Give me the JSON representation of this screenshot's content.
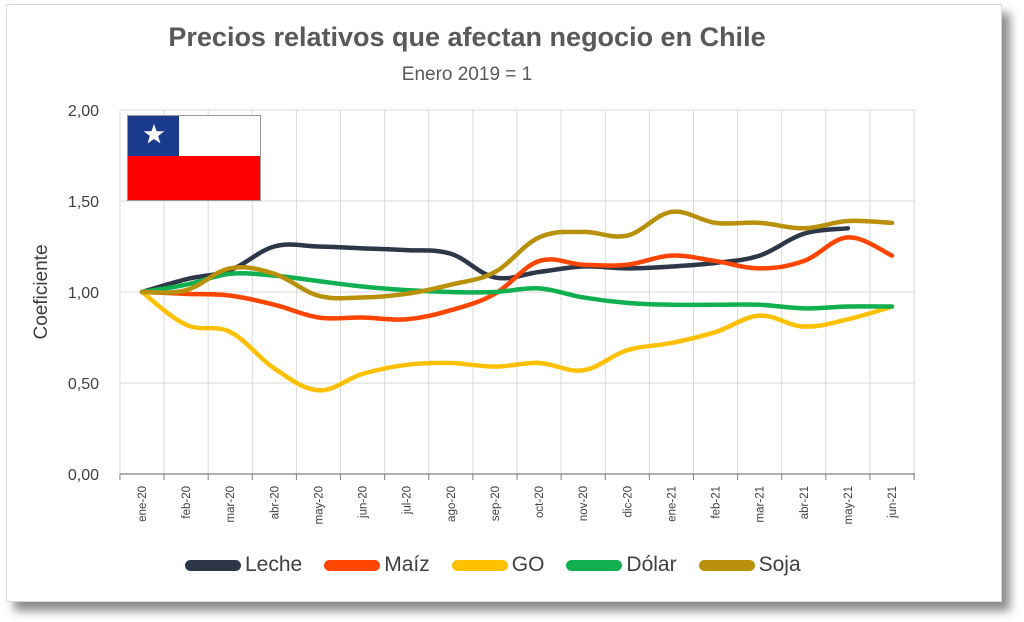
{
  "title": "Precios relativos que afectan negocio en Chile",
  "subtitle": "Enero 2019 = 1",
  "colors": {
    "Leche": "#2d3748",
    "Maíz": "#ff4500",
    "GO": "#ffc000",
    "Dólar": "#10b050",
    "Soja": "#b8900a",
    "grid": "#d9d9d9",
    "flag_blue": "#1a3a8c",
    "flag_red": "#ff0000"
  },
  "flag_icon": "chile-flag",
  "chart_data": {
    "type": "line",
    "ylabel": "Coeficiente",
    "xlabel": "",
    "ylim": [
      0,
      2
    ],
    "yticks": [
      "0,00",
      "0,50",
      "1,00",
      "1,50",
      "2,00"
    ],
    "grid": true,
    "legend_position": "bottom",
    "categories": [
      "ene-20",
      "feb-20",
      "mar-20",
      "abr-20",
      "may-20",
      "jun-20",
      "jul-20",
      "ago-20",
      "sep-20",
      "oct-20",
      "nov-20",
      "dic-20",
      "ene-21",
      "feb-21",
      "mar-21",
      "abr-21",
      "may-21",
      "jun-21"
    ],
    "series": [
      {
        "name": "Leche",
        "values": [
          1.0,
          1.07,
          1.12,
          1.25,
          1.25,
          1.24,
          1.23,
          1.21,
          1.08,
          1.11,
          1.14,
          1.13,
          1.14,
          1.16,
          1.2,
          1.32,
          1.35,
          null
        ]
      },
      {
        "name": "Maíz",
        "values": [
          1.0,
          0.99,
          0.98,
          0.93,
          0.86,
          0.86,
          0.85,
          0.9,
          0.99,
          1.17,
          1.15,
          1.15,
          1.2,
          1.17,
          1.13,
          1.17,
          1.3,
          1.2
        ]
      },
      {
        "name": "GO",
        "values": [
          1.0,
          0.82,
          0.78,
          0.58,
          0.46,
          0.55,
          0.6,
          0.61,
          0.59,
          0.61,
          0.57,
          0.68,
          0.72,
          0.78,
          0.87,
          0.81,
          0.85,
          0.92
        ]
      },
      {
        "name": "Dólar",
        "values": [
          1.0,
          1.04,
          1.1,
          1.09,
          1.06,
          1.03,
          1.01,
          1.0,
          1.0,
          1.02,
          0.97,
          0.94,
          0.93,
          0.93,
          0.93,
          0.91,
          0.92,
          0.92
        ]
      },
      {
        "name": "Soja",
        "values": [
          1.0,
          1.01,
          1.13,
          1.1,
          0.98,
          0.97,
          0.99,
          1.04,
          1.11,
          1.3,
          1.33,
          1.31,
          1.44,
          1.38,
          1.38,
          1.35,
          1.39,
          1.38
        ]
      }
    ]
  }
}
